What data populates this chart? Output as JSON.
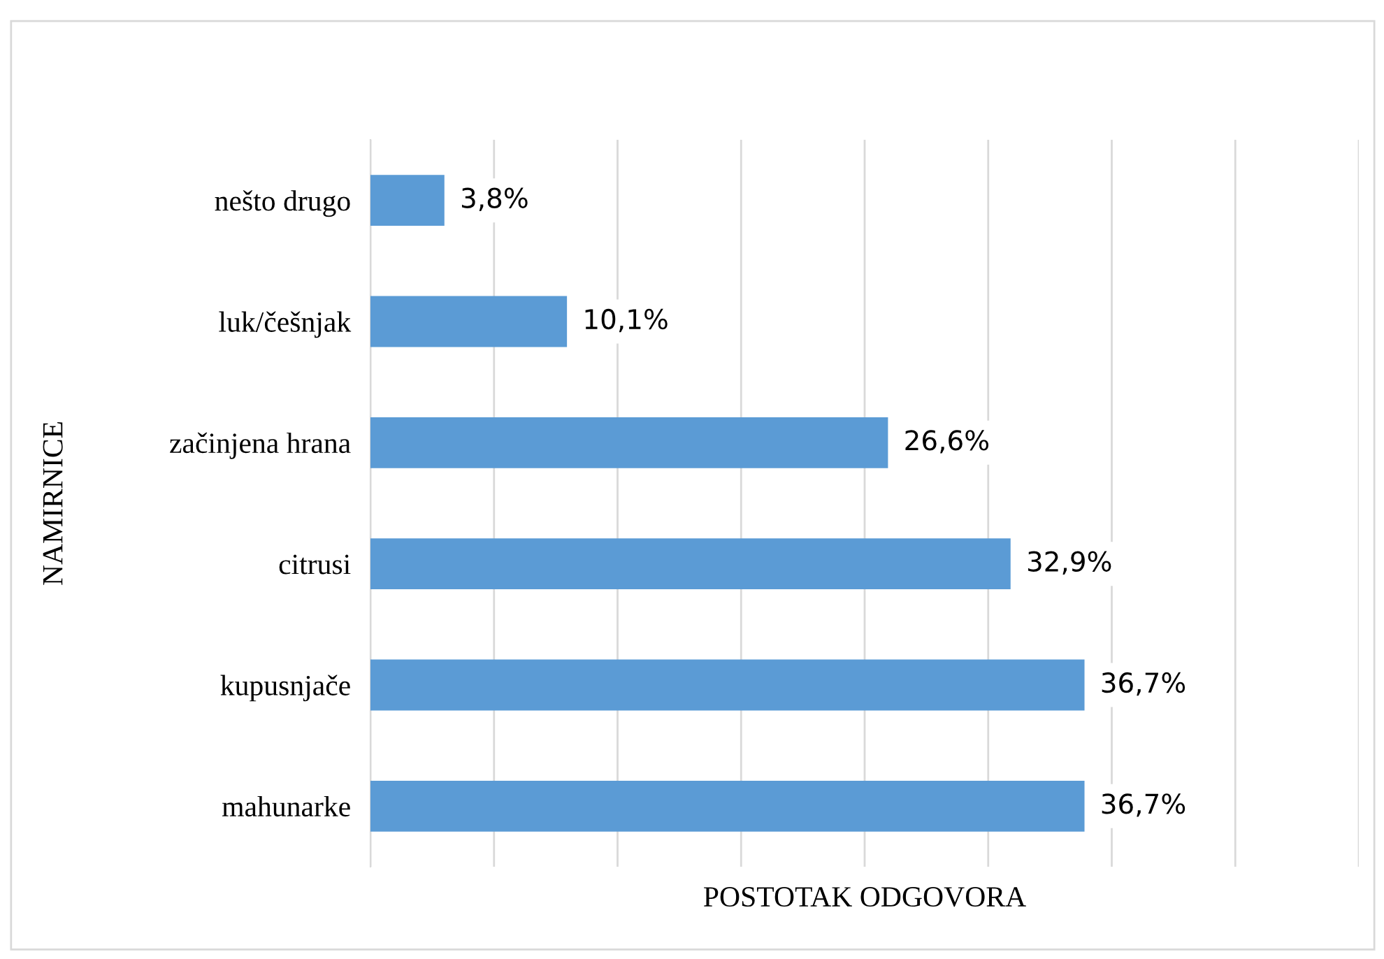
{
  "chart_data": {
    "type": "bar",
    "orientation": "horizontal",
    "categories": [
      "nešto drugo",
      "luk/češnjak",
      "začinjena hrana",
      "citrusi",
      "kupusnjače",
      "mahunarke"
    ],
    "values": [
      3.8,
      10.1,
      26.6,
      32.9,
      36.7,
      36.7
    ],
    "value_labels": [
      "3,8%",
      "10,1%",
      "26,6%",
      "32,9%",
      "36,7%",
      "36,7%"
    ],
    "color": "#5b9bd5",
    "xlabel": "POSTOTAK ODGOVORA",
    "ylabel": "NAMIRNICE",
    "xlim": [
      0,
      50.8
    ],
    "xticks": [
      {
        "value": 0,
        "label": null
      },
      {
        "value": 6.35,
        "label": null
      },
      {
        "value": 12.7,
        "label": null
      },
      {
        "value": 19.05,
        "label": null
      },
      {
        "value": 25.4,
        "label": null
      },
      {
        "value": 31.75,
        "label": null
      },
      {
        "value": 38.1,
        "label": null
      },
      {
        "value": 44.45,
        "label": null
      },
      {
        "value": 50.8,
        "label": null
      }
    ],
    "grid": "x",
    "tick_labels": "y",
    "legend": false
  }
}
